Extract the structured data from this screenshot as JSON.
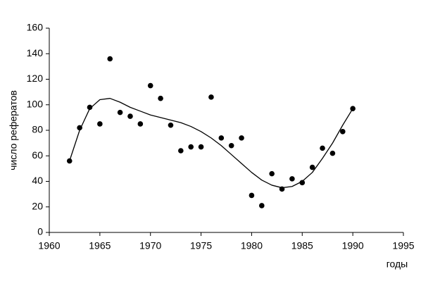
{
  "chart_data": {
    "type": "scatter",
    "x": [
      1962,
      1963,
      1964,
      1965,
      1966,
      1967,
      1968,
      1969,
      1970,
      1971,
      1972,
      1973,
      1974,
      1975,
      1976,
      1977,
      1978,
      1979,
      1980,
      1981,
      1982,
      1983,
      1984,
      1985,
      1986,
      1987,
      1988,
      1989,
      1990
    ],
    "values": [
      56,
      82,
      98,
      85,
      136,
      94,
      91,
      85,
      115,
      105,
      84,
      64,
      67,
      67,
      106,
      74,
      68,
      74,
      29,
      21,
      46,
      34,
      42,
      39,
      51,
      66,
      62,
      79,
      97
    ],
    "color": "#000000",
    "trend": {
      "x": [
        1962,
        1963,
        1964,
        1965,
        1966,
        1967,
        1968,
        1969,
        1970,
        1971,
        1972,
        1973,
        1974,
        1975,
        1976,
        1977,
        1978,
        1979,
        1980,
        1981,
        1982,
        1983,
        1984,
        1985,
        1986,
        1987,
        1988,
        1989,
        1990
      ],
      "values": [
        56,
        80,
        97,
        104,
        105,
        102,
        98,
        95,
        92,
        90,
        88,
        86,
        83,
        79,
        74,
        68,
        61,
        54,
        47,
        41,
        37,
        35,
        36,
        40,
        47,
        58,
        70,
        84,
        97
      ],
      "color": "#000000"
    },
    "xlim": [
      1960,
      1995
    ],
    "xticks": [
      1960,
      1965,
      1970,
      1975,
      1980,
      1985,
      1990,
      1995
    ],
    "ylim": [
      0,
      160
    ],
    "yticks": [
      0,
      20,
      40,
      60,
      80,
      100,
      120,
      140,
      160
    ],
    "x_label": "годы",
    "y_label": "число рефератов"
  }
}
